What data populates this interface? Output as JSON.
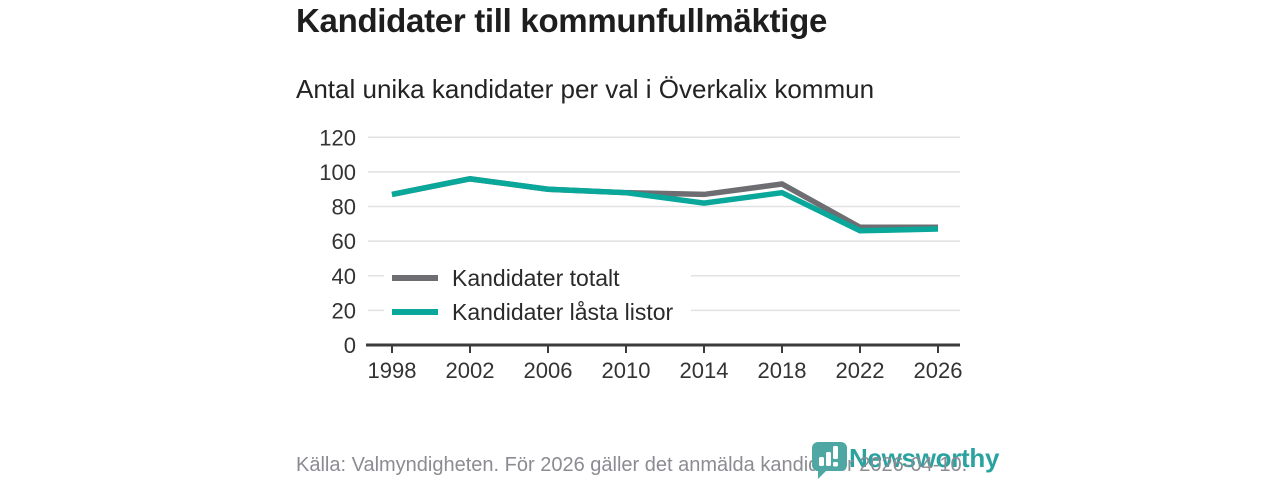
{
  "chart_data": {
    "type": "line",
    "title": "Kandidater till kommunfullmäktige",
    "subtitle": "Antal unika kandidater per val i Överkalix kommun",
    "x": [
      1998,
      2002,
      2006,
      2010,
      2014,
      2018,
      2022,
      2026
    ],
    "series": [
      {
        "name": "Kandidater totalt",
        "color": "#6e6e72",
        "values": [
          87,
          96,
          90,
          88,
          87,
          93,
          68,
          68
        ]
      },
      {
        "name": "Kandidater låsta listor",
        "color": "#0aa79b",
        "values": [
          87,
          96,
          90,
          88,
          82,
          88,
          66,
          67
        ]
      }
    ],
    "ylim": [
      0,
      120
    ],
    "yticks": [
      0,
      20,
      40,
      60,
      80,
      100,
      120
    ],
    "grid": true,
    "legend_position": "inside-left"
  },
  "footer": {
    "source": "Källa: Valmyndigheten. För 2026 gäller det anmälda kandidater 2026-04-10.",
    "brand_name": "Newsworthy"
  },
  "colors": {
    "grid": "#e1e1e1",
    "axis": "#3b3b3b",
    "tick_label": "#333333",
    "logo_text_teal": "#2aa3a0",
    "logo_icon_teal": "#4ea7a2",
    "source_gray": "#8b8b92"
  }
}
